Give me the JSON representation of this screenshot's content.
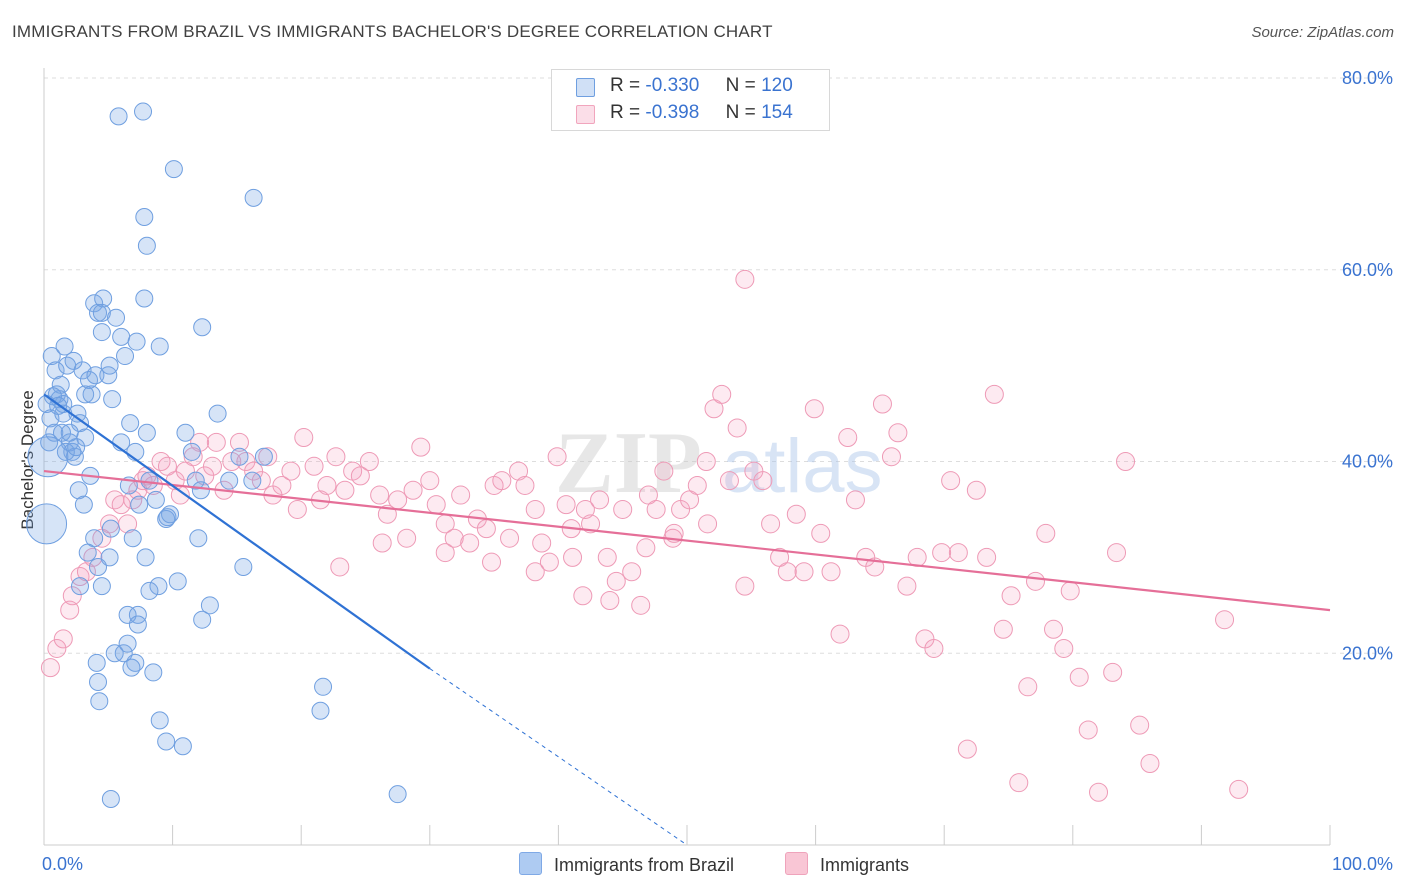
{
  "title": "IMMIGRANTS FROM BRAZIL VS IMMIGRANTS BACHELOR'S DEGREE CORRELATION CHART",
  "source": "Source: ZipAtlas.com",
  "watermark": {
    "zip": "ZIP",
    "atlas": "atlas"
  },
  "legend": {
    "rows": [
      {
        "r_label": "R =",
        "r_value": "-0.330",
        "n_label": "N =",
        "n_value": "120",
        "color": "#6f9fe0"
      },
      {
        "r_label": "R =",
        "r_value": "-0.398",
        "n_label": "N =",
        "n_value": "154",
        "color": "#f1a5bd"
      }
    ]
  },
  "bottom_legend": [
    {
      "label": "Immigrants from Brazil",
      "color": "#aecbf2"
    },
    {
      "label": "Immigrants",
      "color": "#f9c6d5"
    }
  ],
  "colors": {
    "blue_fill": "rgba(120,165,230,0.30)",
    "blue_stroke": "#6f9fe0",
    "blue_line": "#2f72d4",
    "pink_fill": "rgba(244,160,190,0.22)",
    "pink_stroke": "#ee9ab6",
    "pink_line": "#e56f98",
    "grid": "#dddddd",
    "tick_text": "#3a73d0"
  },
  "chart_data": {
    "type": "scatter",
    "title": "IMMIGRANTS FROM BRAZIL VS IMMIGRANTS BACHELOR'S DEGREE CORRELATION CHART",
    "xlabel": "",
    "ylabel": "Bachelor's Degree",
    "xlim": [
      0,
      100
    ],
    "ylim": [
      0,
      80
    ],
    "x_tick_labels": [
      "0.0%",
      "100.0%"
    ],
    "y_ticks": [
      20,
      40,
      60,
      80
    ],
    "y_tick_labels": [
      "20.0%",
      "40.0%",
      "60.0%",
      "80.0%"
    ],
    "grid": true,
    "series": [
      {
        "name": "Immigrants from Brazil",
        "r": -0.33,
        "n": 120,
        "trend": {
          "x0": 0,
          "y0": 47,
          "x1": 30,
          "y1": 18.4,
          "dash_to_x": 50,
          "dash_to_y": 0
        },
        "points": [
          [
            0.2,
            46
          ],
          [
            0.5,
            44.5
          ],
          [
            0.8,
            43
          ],
          [
            1.0,
            47
          ],
          [
            1.2,
            46.5
          ],
          [
            0.4,
            42
          ],
          [
            0.6,
            51
          ],
          [
            0.9,
            49.5
          ],
          [
            1.3,
            48
          ],
          [
            1.5,
            45
          ],
          [
            1.6,
            52
          ],
          [
            1.8,
            50
          ],
          [
            2.0,
            42
          ],
          [
            2.2,
            41
          ],
          [
            2.4,
            40.5
          ],
          [
            1.4,
            43
          ],
          [
            1.7,
            41
          ],
          [
            2.6,
            45
          ],
          [
            2.8,
            44
          ],
          [
            3.0,
            49.5
          ],
          [
            3.2,
            47
          ],
          [
            3.5,
            48.5
          ],
          [
            3.7,
            47
          ],
          [
            4.0,
            49
          ],
          [
            3.9,
            56.5
          ],
          [
            4.2,
            55.5
          ],
          [
            4.5,
            53.5
          ],
          [
            5.0,
            49
          ],
          [
            5.1,
            50
          ],
          [
            5.3,
            46.5
          ],
          [
            4.6,
            57
          ],
          [
            5.6,
            55
          ],
          [
            6.0,
            53
          ],
          [
            6.3,
            51
          ],
          [
            6.0,
            42
          ],
          [
            6.7,
            44
          ],
          [
            7.1,
            41
          ],
          [
            6.6,
            37.5
          ],
          [
            6.9,
            32
          ],
          [
            7.4,
            35.5
          ],
          [
            6.2,
            20
          ],
          [
            7.1,
            19
          ],
          [
            4.1,
            19
          ],
          [
            4.2,
            17
          ],
          [
            4.3,
            15
          ],
          [
            5.1,
            30
          ],
          [
            5.2,
            33
          ],
          [
            4.5,
            27
          ],
          [
            6.5,
            24
          ],
          [
            7.3,
            24
          ],
          [
            8.0,
            43
          ],
          [
            8.2,
            38
          ],
          [
            8.7,
            36
          ],
          [
            7.9,
            30
          ],
          [
            8.9,
            27
          ],
          [
            9.5,
            34
          ],
          [
            9.8,
            34.5
          ],
          [
            10.4,
            27.5
          ],
          [
            11.0,
            43
          ],
          [
            11.5,
            41
          ],
          [
            11.8,
            38
          ],
          [
            12.2,
            37
          ],
          [
            12.0,
            32
          ],
          [
            12.3,
            23.5
          ],
          [
            12.9,
            25
          ],
          [
            13.5,
            45
          ],
          [
            14.4,
            38
          ],
          [
            15.2,
            40.5
          ],
          [
            15.5,
            29
          ],
          [
            16.2,
            38
          ],
          [
            16.3,
            67.5
          ],
          [
            17.1,
            40.5
          ],
          [
            12.3,
            54
          ],
          [
            10.1,
            70.5
          ],
          [
            8.0,
            62.5
          ],
          [
            7.8,
            65.5
          ],
          [
            7.8,
            57
          ],
          [
            9.0,
            52
          ],
          [
            7.2,
            52.5
          ],
          [
            7.7,
            76.5
          ],
          [
            5.8,
            76
          ],
          [
            4.5,
            55.5
          ],
          [
            2.3,
            50.5
          ],
          [
            3.6,
            38.5
          ],
          [
            2.7,
            37
          ],
          [
            3.1,
            35.5
          ],
          [
            3.9,
            32
          ],
          [
            3.4,
            30.5
          ],
          [
            4.2,
            29
          ],
          [
            2.8,
            27
          ],
          [
            6.5,
            21
          ],
          [
            7.3,
            23
          ],
          [
            8.2,
            26.5
          ],
          [
            8.5,
            18
          ],
          [
            9.5,
            10.8
          ],
          [
            10.8,
            10.3
          ],
          [
            9.0,
            13
          ],
          [
            21.5,
            14
          ],
          [
            21.7,
            16.5
          ],
          [
            27.5,
            5.3
          ],
          [
            5.2,
            4.8
          ],
          [
            5.5,
            20
          ],
          [
            6.8,
            18.5
          ],
          [
            3.2,
            42.5
          ],
          [
            2.5,
            41.5
          ],
          [
            1.5,
            46
          ],
          [
            0.7,
            46.8
          ],
          [
            1.1,
            45.8
          ],
          [
            2.0,
            43
          ],
          [
            9.6,
            34.2
          ]
        ],
        "big_points": [
          [
            0.3,
            40.5
          ],
          [
            0.2,
            33.5
          ]
        ]
      },
      {
        "name": "Immigrants",
        "r": -0.398,
        "n": 154,
        "trend": {
          "x0": 0,
          "y0": 39,
          "x1": 100,
          "y1": 24.5
        },
        "points": [
          [
            0.5,
            18.5
          ],
          [
            1.0,
            20.5
          ],
          [
            1.5,
            21.5
          ],
          [
            2.0,
            24.5
          ],
          [
            2.2,
            26
          ],
          [
            2.8,
            28
          ],
          [
            3.3,
            28.5
          ],
          [
            3.8,
            30
          ],
          [
            4.5,
            32
          ],
          [
            5.1,
            33.5
          ],
          [
            5.5,
            36
          ],
          [
            6.0,
            35.5
          ],
          [
            6.5,
            33.5
          ],
          [
            6.9,
            36
          ],
          [
            7.3,
            37
          ],
          [
            7.7,
            38
          ],
          [
            8.0,
            38.5
          ],
          [
            8.5,
            37.5
          ],
          [
            9.1,
            40
          ],
          [
            9.6,
            39.5
          ],
          [
            10.2,
            38
          ],
          [
            10.6,
            36.5
          ],
          [
            11.0,
            39
          ],
          [
            11.6,
            40.5
          ],
          [
            12.1,
            42
          ],
          [
            12.5,
            38.5
          ],
          [
            13.1,
            39.5
          ],
          [
            13.4,
            42
          ],
          [
            14.0,
            37
          ],
          [
            14.6,
            40
          ],
          [
            15.2,
            42
          ],
          [
            15.7,
            40
          ],
          [
            16.3,
            39
          ],
          [
            16.9,
            38
          ],
          [
            17.4,
            40.5
          ],
          [
            17.8,
            36.5
          ],
          [
            18.5,
            37.5
          ],
          [
            19.2,
            39
          ],
          [
            19.7,
            35
          ],
          [
            20.2,
            42.5
          ],
          [
            21.0,
            39.5
          ],
          [
            21.5,
            36
          ],
          [
            22.0,
            37.5
          ],
          [
            22.7,
            40.5
          ],
          [
            23.4,
            37
          ],
          [
            24.0,
            39
          ],
          [
            24.6,
            38.5
          ],
          [
            25.3,
            40
          ],
          [
            26.1,
            36.5
          ],
          [
            26.7,
            34.5
          ],
          [
            27.5,
            36
          ],
          [
            28.2,
            32
          ],
          [
            28.7,
            37
          ],
          [
            29.3,
            41.5
          ],
          [
            30.0,
            38
          ],
          [
            30.5,
            35.5
          ],
          [
            31.2,
            33.5
          ],
          [
            31.9,
            32
          ],
          [
            32.4,
            36.5
          ],
          [
            33.1,
            31.5
          ],
          [
            33.7,
            34
          ],
          [
            34.4,
            33
          ],
          [
            35.0,
            37.5
          ],
          [
            35.6,
            38
          ],
          [
            36.2,
            32
          ],
          [
            36.9,
            39
          ],
          [
            37.4,
            37.5
          ],
          [
            38.2,
            35
          ],
          [
            38.7,
            31.5
          ],
          [
            39.3,
            29.5
          ],
          [
            39.9,
            40.5
          ],
          [
            40.6,
            35.5
          ],
          [
            41.1,
            30
          ],
          [
            41.9,
            26
          ],
          [
            42.5,
            33.5
          ],
          [
            43.2,
            36
          ],
          [
            43.8,
            30
          ],
          [
            44.5,
            27.5
          ],
          [
            45.0,
            35
          ],
          [
            45.7,
            28.5
          ],
          [
            46.4,
            25
          ],
          [
            47.0,
            36.5
          ],
          [
            47.6,
            35
          ],
          [
            48.2,
            39
          ],
          [
            48.9,
            32
          ],
          [
            49.5,
            35
          ],
          [
            50.2,
            36
          ],
          [
            50.8,
            37.5
          ],
          [
            51.6,
            33.5
          ],
          [
            52.1,
            45.5
          ],
          [
            52.7,
            47
          ],
          [
            53.3,
            38
          ],
          [
            53.9,
            43.5
          ],
          [
            54.5,
            27
          ],
          [
            55.2,
            39
          ],
          [
            55.9,
            38
          ],
          [
            56.5,
            33.5
          ],
          [
            57.2,
            30
          ],
          [
            57.8,
            28.5
          ],
          [
            58.5,
            34.5
          ],
          [
            59.1,
            28.5
          ],
          [
            59.9,
            45.5
          ],
          [
            60.4,
            32.5
          ],
          [
            61.2,
            28.5
          ],
          [
            61.9,
            22
          ],
          [
            62.5,
            42.5
          ],
          [
            63.1,
            36
          ],
          [
            63.9,
            30
          ],
          [
            64.6,
            29
          ],
          [
            65.2,
            46
          ],
          [
            65.9,
            40.5
          ],
          [
            66.4,
            43
          ],
          [
            67.1,
            27
          ],
          [
            67.9,
            30
          ],
          [
            68.5,
            21.5
          ],
          [
            69.2,
            20.5
          ],
          [
            69.8,
            30.5
          ],
          [
            70.5,
            38
          ],
          [
            71.1,
            30.5
          ],
          [
            71.8,
            10
          ],
          [
            72.5,
            37
          ],
          [
            73.3,
            30
          ],
          [
            73.9,
            47
          ],
          [
            74.6,
            22.5
          ],
          [
            75.2,
            26
          ],
          [
            75.8,
            6.5
          ],
          [
            76.5,
            16.5
          ],
          [
            77.1,
            27.5
          ],
          [
            77.9,
            32.5
          ],
          [
            78.5,
            22.5
          ],
          [
            79.3,
            20.5
          ],
          [
            79.8,
            26.5
          ],
          [
            80.5,
            17.5
          ],
          [
            81.2,
            12
          ],
          [
            82.0,
            5.5
          ],
          [
            83.1,
            18
          ],
          [
            83.4,
            30.5
          ],
          [
            84.1,
            40
          ],
          [
            85.2,
            12.5
          ],
          [
            86.0,
            8.5
          ],
          [
            91.8,
            23.5
          ],
          [
            92.9,
            5.8
          ],
          [
            54.5,
            59
          ],
          [
            51.5,
            40
          ],
          [
            42.1,
            35
          ],
          [
            46.8,
            31
          ],
          [
            41.0,
            33
          ],
          [
            38.2,
            28.5
          ],
          [
            23.0,
            29
          ],
          [
            26.3,
            31.5
          ],
          [
            31.2,
            30.5
          ],
          [
            34.8,
            29.5
          ],
          [
            44.0,
            25.5
          ],
          [
            49.0,
            32.5
          ]
        ]
      }
    ]
  }
}
